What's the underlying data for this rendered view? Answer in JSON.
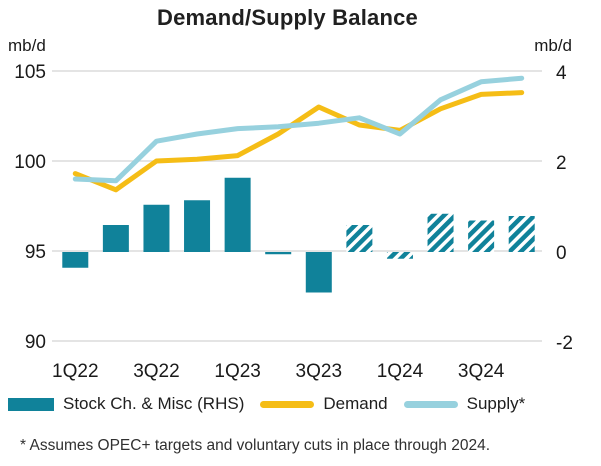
{
  "chart_data": {
    "type": "combo-bar-line",
    "title": "Demand/Supply Balance",
    "footnote": "* Assumes OPEC+ targets and voluntary cuts in place through 2024.",
    "categories": [
      "1Q22",
      "2Q22",
      "3Q22",
      "4Q22",
      "1Q23",
      "2Q23",
      "3Q23",
      "4Q23",
      "1Q24",
      "2Q24",
      "3Q24",
      "4Q24"
    ],
    "x_tick_labels_shown": [
      "1Q22",
      "3Q22",
      "1Q23",
      "3Q23",
      "1Q24",
      "3Q24"
    ],
    "left_axis": {
      "unit": "mb/d",
      "min": 90,
      "max": 105,
      "ticks": [
        105,
        100,
        95,
        90
      ]
    },
    "right_axis": {
      "unit": "mb/d",
      "min": -2,
      "max": 4,
      "ticks": [
        4,
        2,
        0,
        -2
      ]
    },
    "grid": true,
    "grid_color": "#D4D4D4",
    "legend_position": "bottom",
    "bars": {
      "name": "Stock Ch. & Misc (RHS)",
      "axis": "right",
      "color": "#10829A",
      "values": [
        -0.35,
        0.6,
        1.05,
        1.15,
        1.65,
        -0.05,
        -0.9,
        0.6,
        -0.15,
        0.85,
        0.7,
        0.8
      ],
      "forecast_hatched": [
        false,
        false,
        false,
        false,
        false,
        false,
        false,
        true,
        true,
        true,
        true,
        true
      ]
    },
    "lines": [
      {
        "name": "Demand",
        "axis": "left",
        "color": "#F5BD16",
        "values": [
          99.3,
          98.4,
          100.0,
          100.1,
          100.3,
          101.5,
          103.0,
          102.0,
          101.7,
          102.9,
          103.7,
          103.8
        ]
      },
      {
        "name": "Supply*",
        "axis": "left",
        "color": "#97D1DE",
        "values": [
          99.0,
          98.9,
          101.1,
          101.5,
          101.8,
          101.9,
          102.1,
          102.4,
          101.5,
          103.4,
          104.4,
          104.6
        ]
      }
    ]
  }
}
